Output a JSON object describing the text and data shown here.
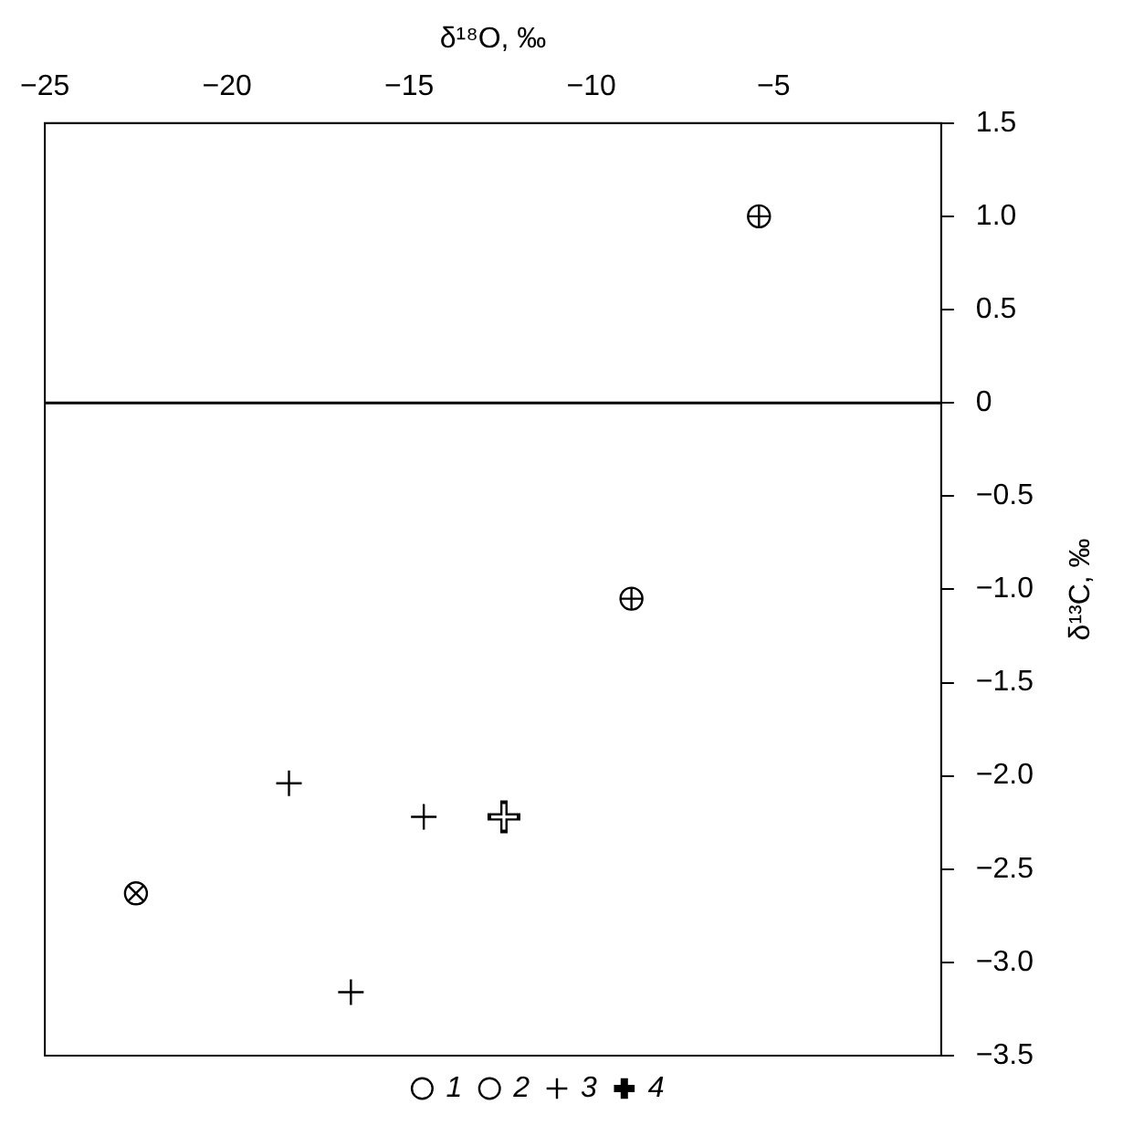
{
  "chart_data": {
    "type": "scatter",
    "xlabel": "δ¹⁸O, ‰",
    "ylabel": "δ¹³C, ‰",
    "xlim": [
      -25,
      -0.4
    ],
    "xticks": [
      {
        "value": -25,
        "label": "−25"
      },
      {
        "value": -20,
        "label": "−20"
      },
      {
        "value": -15,
        "label": "−15"
      },
      {
        "value": -10,
        "label": "−10"
      },
      {
        "value": -5,
        "label": "−5"
      }
    ],
    "ylim": [
      -3.5,
      1.5
    ],
    "yticks": [
      1.5,
      {
        "value": 1,
        "label": "1.0"
      },
      0.5,
      0,
      {
        "value": -0.5,
        "label": "−0.5"
      },
      {
        "value": -1,
        "label": "−1.0"
      },
      {
        "value": -1.5,
        "label": "−1.5"
      },
      {
        "value": -2,
        "label": "−2.0"
      },
      {
        "value": -2.5,
        "label": "−2.5"
      },
      {
        "value": -3,
        "label": "−3.0"
      },
      {
        "value": -3.5,
        "label": "−3.5"
      }
    ],
    "series": [
      {
        "name": "1",
        "color": "#000000",
        "marker": "circle",
        "x": [
          -5.4,
          -8.9
        ],
        "values": [
          1.0,
          -1.05
        ]
      },
      {
        "name": "2",
        "color": "#000000",
        "marker": "circle",
        "x": [
          -22.5
        ],
        "values": [
          -2.63
        ]
      },
      {
        "name": "3",
        "color": "#000000",
        "marker": "cross",
        "x": [
          -18.3,
          -14.6,
          -16.6
        ],
        "values": [
          -2.04,
          -2.22,
          -3.16
        ]
      },
      {
        "name": "4",
        "color": "#000000",
        "marker": "cross",
        "x": [
          -12.4
        ],
        "values": [
          -2.22
        ]
      }
    ],
    "ref_lines": [
      {
        "axis": "y",
        "value": 0,
        "color": "#000000",
        "line_style": "solid"
      }
    ],
    "grid": false,
    "legend": "bottom"
  }
}
